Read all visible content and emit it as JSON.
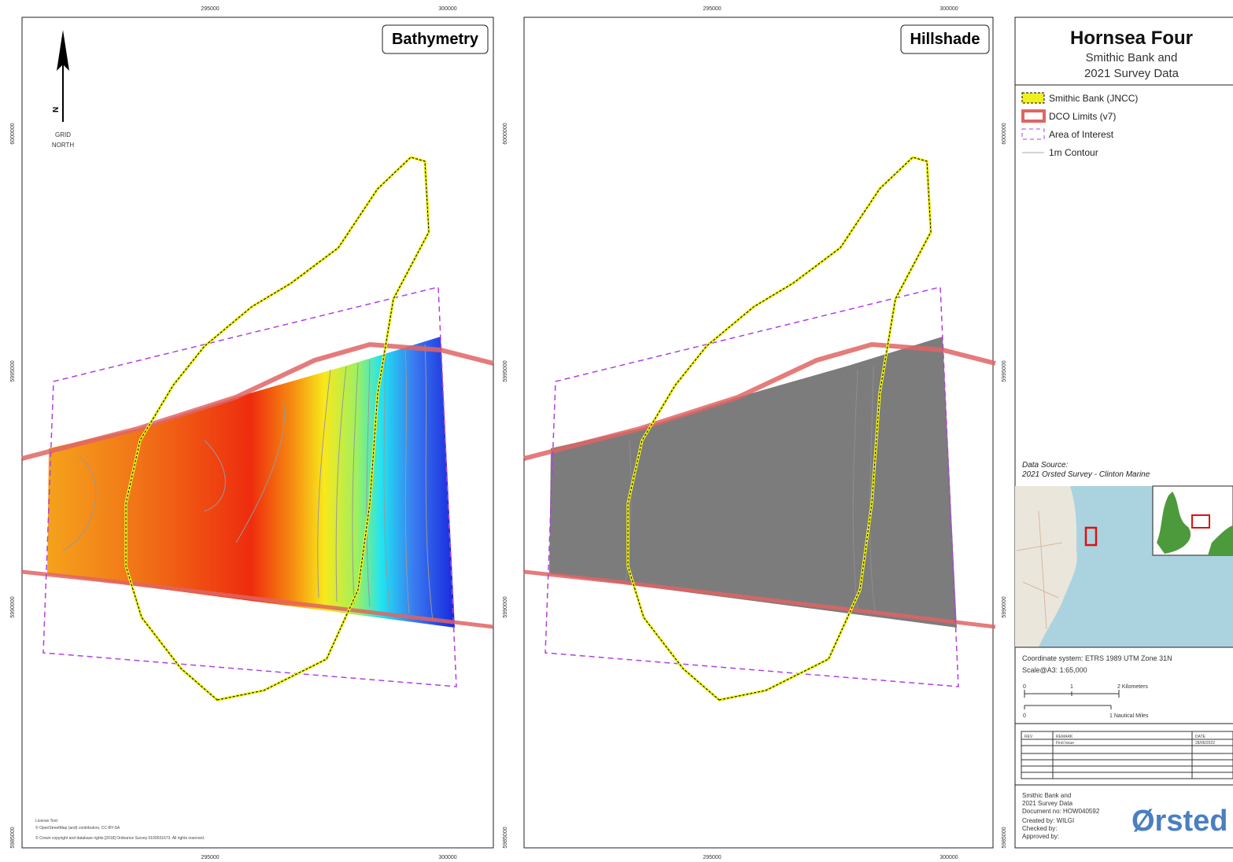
{
  "maps": [
    {
      "title": "Bathymetry",
      "x_labels": [
        "295000",
        "300000"
      ],
      "y_labels": [
        "6000000",
        "5995000",
        "5990000",
        "5985000"
      ]
    },
    {
      "title": "Hillshade",
      "x_labels": [
        "295000",
        "300000"
      ],
      "y_labels": [
        "6000000",
        "5995000",
        "5990000",
        "5985000"
      ]
    }
  ],
  "north_arrow": {
    "letter": "N",
    "label": [
      "GRID",
      "NORTH"
    ]
  },
  "license": [
    "License Text:",
    "© OpenStreetMap (and) contributors, CC-BY-SA",
    "© Crown copyright and database rights [2018] Ordnance Survey 0100031673. All rights reserved."
  ],
  "header": {
    "title": "Hornsea Four",
    "subtitle": [
      "Smithic Bank and",
      "2021 Survey Data"
    ]
  },
  "legend": [
    "Smithic Bank (JNCC)",
    "DCO Limits (v7)",
    "Area of Interest",
    "1m Contour"
  ],
  "data_source": {
    "label": "Data Source:",
    "text": "2021 Orsted Survey - Clinton Marine"
  },
  "coordinate_system": "Coordinate system: ETRS 1989 UTM Zone 31N",
  "scale": "Scale@A3:   1:65,000",
  "scalebar_km": [
    "0",
    "1",
    "2 Kilometers"
  ],
  "scalebar_nm": [
    "0",
    "1 Nautical Miles"
  ],
  "revision_table": {
    "headers": [
      "REV",
      "REMARK",
      "DATE"
    ],
    "rows": [
      {
        "remark": "First Issue",
        "date": "28/06/2022"
      }
    ]
  },
  "footer": {
    "lines": [
      "Smithic Bank and",
      "2021 Survey Data",
      "Document no: HOW040592",
      "Created by: WILGI",
      "Checked by:",
      "Approved by:"
    ],
    "logo": "Ørsted"
  }
}
